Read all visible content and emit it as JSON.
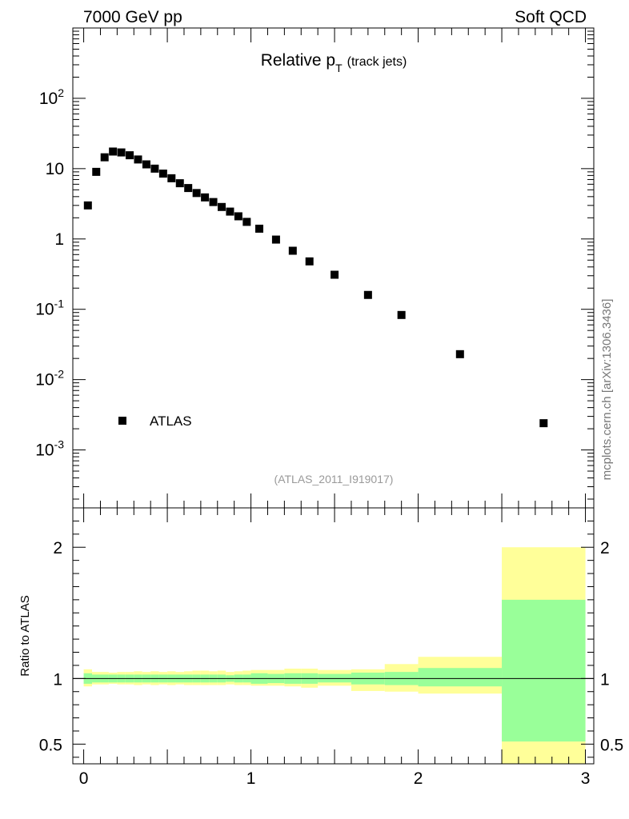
{
  "header": {
    "left": "7000 GeV pp",
    "right": "Soft QCD"
  },
  "side_label": "mcplots.cern.ch [arXiv:1306.3436]",
  "colors": {
    "data_marker": "#000000",
    "band_inner": "#99ff99",
    "band_outer": "#ffff99",
    "reference_line": "#000000"
  },
  "chart_data": [
    {
      "type": "scatter",
      "title": "Relative p",
      "title_subscript": "T",
      "title_suffix": "(track jets)",
      "analysis_label": "(ATLAS_2011_I919017)",
      "xlabel": "",
      "ylabel": "",
      "xlim": [
        -0.065,
        3.05
      ],
      "ylim": [
        0.00015,
        1000
      ],
      "yscale": "log",
      "grid": false,
      "legend": {
        "position": "bottom-left",
        "entries": [
          "ATLAS"
        ]
      },
      "y_tick_labels": [
        "10^2",
        "10",
        "1",
        "10^-1",
        "10^-2",
        "10^-3"
      ],
      "series": [
        {
          "name": "ATLAS",
          "x": [
            0.025,
            0.075,
            0.125,
            0.175,
            0.225,
            0.275,
            0.325,
            0.375,
            0.425,
            0.475,
            0.525,
            0.575,
            0.625,
            0.675,
            0.725,
            0.775,
            0.825,
            0.875,
            0.925,
            0.975,
            1.05,
            1.15,
            1.25,
            1.35,
            1.5,
            1.7,
            1.9,
            2.25,
            2.75
          ],
          "values": [
            3.0,
            9.0,
            14.5,
            17.5,
            17.0,
            15.5,
            13.5,
            11.5,
            10.0,
            8.5,
            7.3,
            6.2,
            5.3,
            4.5,
            3.9,
            3.35,
            2.85,
            2.45,
            2.1,
            1.75,
            1.4,
            0.98,
            0.68,
            0.48,
            0.31,
            0.16,
            0.083,
            0.023,
            0.0024
          ]
        }
      ]
    },
    {
      "type": "area",
      "xlabel": "",
      "ylabel": "Ratio to ATLAS",
      "xlim": [
        -0.065,
        3.05
      ],
      "ylim": [
        0.35,
        2.3
      ],
      "grid": false,
      "x_tick_labels": [
        "0",
        "1",
        "2",
        "3"
      ],
      "y_tick_labels": [
        "0.5",
        "1",
        "2"
      ],
      "reference": 1.0,
      "bins": [
        {
          "x0": 0.0,
          "x1": 0.05,
          "inner": [
            0.96,
            1.04
          ],
          "outer": [
            0.94,
            1.07
          ]
        },
        {
          "x0": 0.05,
          "x1": 0.1,
          "inner": [
            0.97,
            1.03
          ],
          "outer": [
            0.955,
            1.05
          ]
        },
        {
          "x0": 0.1,
          "x1": 0.15,
          "inner": [
            0.97,
            1.03
          ],
          "outer": [
            0.955,
            1.05
          ]
        },
        {
          "x0": 0.15,
          "x1": 0.2,
          "inner": [
            0.97,
            1.03
          ],
          "outer": [
            0.96,
            1.045
          ]
        },
        {
          "x0": 0.2,
          "x1": 0.25,
          "inner": [
            0.97,
            1.03
          ],
          "outer": [
            0.955,
            1.05
          ]
        },
        {
          "x0": 0.25,
          "x1": 0.3,
          "inner": [
            0.97,
            1.03
          ],
          "outer": [
            0.955,
            1.05
          ]
        },
        {
          "x0": 0.3,
          "x1": 0.35,
          "inner": [
            0.97,
            1.03
          ],
          "outer": [
            0.95,
            1.055
          ]
        },
        {
          "x0": 0.35,
          "x1": 0.4,
          "inner": [
            0.97,
            1.03
          ],
          "outer": [
            0.955,
            1.05
          ]
        },
        {
          "x0": 0.4,
          "x1": 0.45,
          "inner": [
            0.97,
            1.03
          ],
          "outer": [
            0.95,
            1.055
          ]
        },
        {
          "x0": 0.45,
          "x1": 0.5,
          "inner": [
            0.97,
            1.03
          ],
          "outer": [
            0.955,
            1.05
          ]
        },
        {
          "x0": 0.5,
          "x1": 0.55,
          "inner": [
            0.97,
            1.03
          ],
          "outer": [
            0.95,
            1.055
          ]
        },
        {
          "x0": 0.55,
          "x1": 0.6,
          "inner": [
            0.97,
            1.03
          ],
          "outer": [
            0.955,
            1.05
          ]
        },
        {
          "x0": 0.6,
          "x1": 0.65,
          "inner": [
            0.97,
            1.03
          ],
          "outer": [
            0.95,
            1.055
          ]
        },
        {
          "x0": 0.65,
          "x1": 0.7,
          "inner": [
            0.97,
            1.03
          ],
          "outer": [
            0.95,
            1.06
          ]
        },
        {
          "x0": 0.7,
          "x1": 0.75,
          "inner": [
            0.97,
            1.03
          ],
          "outer": [
            0.95,
            1.06
          ]
        },
        {
          "x0": 0.75,
          "x1": 0.8,
          "inner": [
            0.97,
            1.03
          ],
          "outer": [
            0.95,
            1.055
          ]
        },
        {
          "x0": 0.8,
          "x1": 0.85,
          "inner": [
            0.97,
            1.03
          ],
          "outer": [
            0.95,
            1.06
          ]
        },
        {
          "x0": 0.85,
          "x1": 0.9,
          "inner": [
            0.975,
            1.025
          ],
          "outer": [
            0.955,
            1.05
          ]
        },
        {
          "x0": 0.9,
          "x1": 0.95,
          "inner": [
            0.97,
            1.03
          ],
          "outer": [
            0.95,
            1.055
          ]
        },
        {
          "x0": 0.95,
          "x1": 1.0,
          "inner": [
            0.97,
            1.03
          ],
          "outer": [
            0.95,
            1.06
          ]
        },
        {
          "x0": 1.0,
          "x1": 1.1,
          "inner": [
            0.96,
            1.04
          ],
          "outer": [
            0.945,
            1.065
          ]
        },
        {
          "x0": 1.1,
          "x1": 1.2,
          "inner": [
            0.965,
            1.035
          ],
          "outer": [
            0.945,
            1.065
          ]
        },
        {
          "x0": 1.2,
          "x1": 1.3,
          "inner": [
            0.96,
            1.04
          ],
          "outer": [
            0.94,
            1.075
          ]
        },
        {
          "x0": 1.3,
          "x1": 1.4,
          "inner": [
            0.96,
            1.04
          ],
          "outer": [
            0.93,
            1.075
          ]
        },
        {
          "x0": 1.4,
          "x1": 1.6,
          "inner": [
            0.97,
            1.035
          ],
          "outer": [
            0.945,
            1.065
          ]
        },
        {
          "x0": 1.6,
          "x1": 1.8,
          "inner": [
            0.955,
            1.045
          ],
          "outer": [
            0.905,
            1.07
          ]
        },
        {
          "x0": 1.8,
          "x1": 2.0,
          "inner": [
            0.95,
            1.05
          ],
          "outer": [
            0.9,
            1.11
          ]
        },
        {
          "x0": 2.0,
          "x1": 2.5,
          "inner": [
            0.94,
            1.08
          ],
          "outer": [
            0.885,
            1.165
          ]
        },
        {
          "x0": 2.5,
          "x1": 3.0,
          "inner": [
            0.52,
            1.6
          ],
          "outer": [
            0.3,
            2.0
          ]
        }
      ]
    }
  ]
}
